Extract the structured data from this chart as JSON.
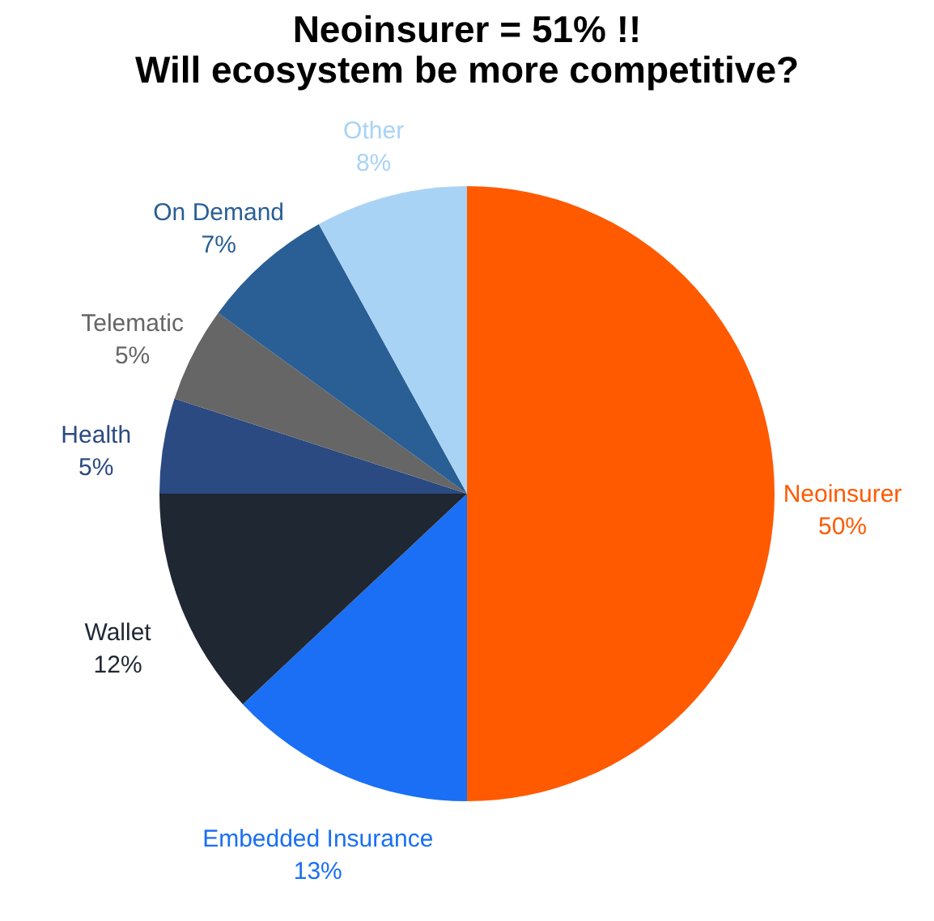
{
  "chart_data": {
    "type": "pie",
    "title": "Neoinsurer = 51% !!\nWill ecosystem be more competitive?",
    "categories": [
      "Neoinsurer",
      "Embedded Insurance",
      "Wallet",
      "Health",
      "Telematic",
      "On Demand",
      "Other"
    ],
    "values": [
      50,
      13,
      12,
      5,
      5,
      7,
      8
    ],
    "value_labels": [
      "50%",
      "13%",
      "12%",
      "5%",
      "5%",
      "7%",
      "8%"
    ],
    "colors": [
      "#ff5a00",
      "#1a6ff5",
      "#1f2733",
      "#2b4a82",
      "#666666",
      "#2a5f95",
      "#a9d3f5"
    ],
    "legend": false
  }
}
